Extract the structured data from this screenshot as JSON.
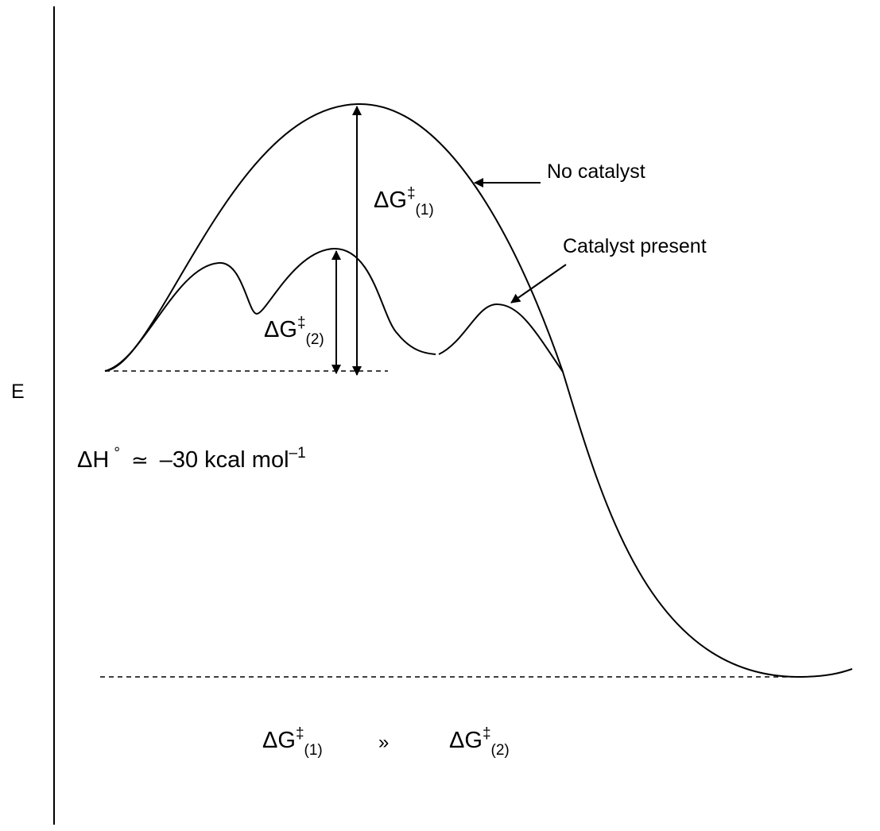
{
  "axis": {
    "ylabel": "E"
  },
  "curves": {
    "no_catalyst_label": "No catalyst",
    "catalyst_label": "Catalyst present"
  },
  "barriers": {
    "dg1": {
      "symbol": "ΔG",
      "dagger": "‡",
      "index": "(1)"
    },
    "dg2": {
      "symbol": "ΔG",
      "dagger": "‡",
      "index": "(2)"
    }
  },
  "enthalpy": {
    "symbol": "ΔH",
    "degree": "°",
    "relation": "≃",
    "value": "–30 kcal mol",
    "exponent": "–1"
  },
  "comparison": {
    "left": {
      "symbol": "ΔG",
      "dagger": "‡",
      "index": "(1)"
    },
    "operator": "»",
    "right": {
      "symbol": "ΔG",
      "dagger": "‡",
      "index": "(2)"
    }
  },
  "colors": {
    "line": "#000000",
    "background": "#ffffff"
  }
}
